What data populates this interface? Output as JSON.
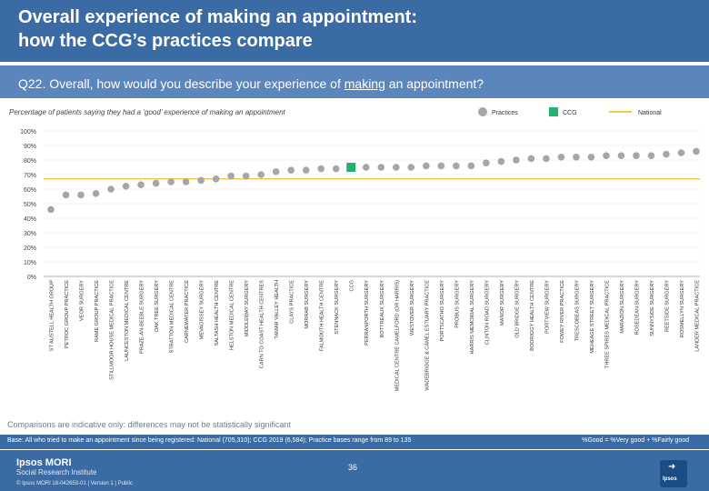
{
  "title": "Overall experience of making an appointment:\nhow the CCG’s practices compare",
  "question": {
    "prefix": "Q22. Overall, how would you describe your experience of ",
    "underlined": "making",
    "suffix": " an appointment?"
  },
  "page_number": "36",
  "comparisons_note": "Comparisons are indicative only: differences may not be statistically significant",
  "base_note": "Base: All who tried to make an appointment since being registered: National (705,310); CCG 2019 (6,584); Practice bases range from 89 to 135",
  "formula_note": "%Good = %Very good + %Fairly good",
  "logo": {
    "name": "Ipsos MORI",
    "sub": "Social Research Institute",
    "copyright": "© Ipsos MORI     18-042653-01 | Version 1 | Public",
    "badge": "Ipsos"
  },
  "colors": {
    "practice": "#a6a6a6",
    "ccg": "#21b26e",
    "national": "#f3c84b"
  },
  "chart_data": {
    "type": "scatter",
    "title": "Percentage of patients saying they had a ‘good’ experience of making an appointment",
    "ylim": [
      0,
      100
    ],
    "yticks": [
      "0%",
      "10%",
      "20%",
      "30%",
      "40%",
      "50%",
      "60%",
      "70%",
      "80%",
      "90%",
      "100%"
    ],
    "legend": [
      "Practices",
      "CCG",
      "National"
    ],
    "national_value": 67,
    "ccg_category": "CCG",
    "categories": [
      "ST AUSTELL HEALTH GROUP",
      "PETROC GROUP PRACTICE",
      "VEOR SURGERY",
      "RAME GROUP PRACTICE",
      "STILLMOOR HOUSE MEDICAL PRACTICE",
      "LAUNCESTON MEDICAL CENTRE",
      "PRAZE-AN-BEEBLE SURGERY",
      "OAK TREE SURGERY",
      "STRATTON MEDICAL CENTRE",
      "CARNEWATER PRACTICE",
      "MEVAGISSEY SURGERY",
      "SALTASH HEALTH CENTRE",
      "HELSTON MEDICAL CENTRE",
      "MIDDLEWAY SURGERY",
      "CARN TO COAST HEALTH CENTRES",
      "TAMAR VALLEY HEALTH",
      "CLAYS PRACTICE",
      "MORRAB SURGERY",
      "FALMOUTH HEALTH CENTRE",
      "STENNACK SURGERY",
      "CCG",
      "PERRANPORTH SURGERY",
      "BOTTREAUX SURGERY",
      "MEDICAL CENTRE CAMELFORD (OR HARRIS)",
      "WESTOVER SURGERY",
      "WADEBRIDGE & CAMEL ESTUARY PRACTICE",
      "PORTSCATHO SURGERY",
      "PROBUS SURGERY",
      "HARRIS MEMORIAL SURGERY",
      "CLINTON ROAD SURGERY",
      "MANOR SURGERY",
      "OLD BRIDGE SURGERY",
      "BODRIGGY HEALTH CENTRE",
      "PORTVIEW SURGERY",
      "FOWEY RIVER PRACTICE",
      "TRESCOBEAS SURGERY",
      "MEHEAGE STREET SURGERY",
      "THREE SPIRES MEDICAL PRACTICE",
      "MARAZION SURGERY",
      "ROSEDEAN SURGERY",
      "SUNNYSIDE SURGERY",
      "REETSIDE SURGERY",
      "ROSMELLYN SURGERY",
      "LANDER MEDICAL PRACTICE"
    ],
    "values": [
      46,
      56,
      56,
      57,
      60,
      62,
      63,
      64,
      65,
      65,
      66,
      67,
      69,
      69,
      70,
      72,
      73,
      73,
      74,
      74,
      75,
      75,
      75,
      75,
      75,
      76,
      76,
      76,
      76,
      78,
      79,
      80,
      81,
      81,
      82,
      82,
      82,
      83,
      83,
      83,
      83,
      84,
      85,
      86
    ]
  }
}
